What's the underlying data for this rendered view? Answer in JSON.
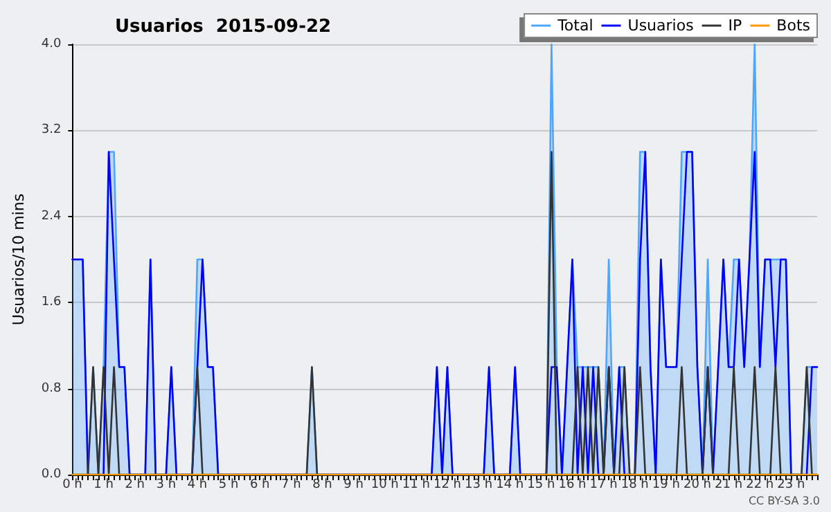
{
  "chart_data": {
    "type": "line",
    "title": "Usuarios  2015-09-22",
    "ylabel": "Usuarios/10 mins",
    "categories": [
      "0 h",
      null,
      null,
      null,
      null,
      null,
      "1 h",
      null,
      null,
      null,
      null,
      null,
      "2 h",
      null,
      null,
      null,
      null,
      null,
      "3 h",
      null,
      null,
      null,
      null,
      null,
      "4 h",
      null,
      null,
      null,
      null,
      null,
      "5 h",
      null,
      null,
      null,
      null,
      null,
      "6 h",
      null,
      null,
      null,
      null,
      null,
      "7 h",
      null,
      null,
      null,
      null,
      null,
      "8 h",
      null,
      null,
      null,
      null,
      null,
      "9 h",
      null,
      null,
      null,
      null,
      null,
      "10 h",
      null,
      null,
      null,
      null,
      null,
      "11 h",
      null,
      null,
      null,
      null,
      null,
      "12 h",
      null,
      null,
      null,
      null,
      null,
      "13 h",
      null,
      null,
      null,
      null,
      null,
      "14 h",
      null,
      null,
      null,
      null,
      null,
      "15 h",
      null,
      null,
      null,
      null,
      null,
      "16 h",
      null,
      null,
      null,
      null,
      null,
      "17 h",
      null,
      null,
      null,
      null,
      null,
      "18 h",
      null,
      null,
      null,
      null,
      null,
      "19 h",
      null,
      null,
      null,
      null,
      null,
      "20 h",
      null,
      null,
      null,
      null,
      null,
      "21 h",
      null,
      null,
      null,
      null,
      null,
      "22 h",
      null,
      null,
      null,
      null,
      null,
      "23 h",
      null,
      null,
      null,
      null,
      null
    ],
    "series": [
      {
        "name": "Total",
        "type": "area",
        "color": "#4da6ff",
        "values": [
          2,
          2,
          2,
          0,
          1,
          0,
          1,
          3,
          3,
          1,
          1,
          0,
          0,
          0,
          0,
          2,
          0,
          0,
          0,
          1,
          0,
          0,
          0,
          0,
          2,
          2,
          1,
          1,
          0,
          0,
          0,
          0,
          0,
          0,
          0,
          0,
          0,
          0,
          0,
          0,
          0,
          0,
          0,
          0,
          0,
          0,
          1,
          0,
          0,
          0,
          0,
          0,
          0,
          0,
          0,
          0,
          0,
          0,
          0,
          0,
          0,
          0,
          0,
          0,
          0,
          0,
          0,
          0,
          0,
          0,
          1,
          0,
          1,
          0,
          0,
          0,
          0,
          0,
          0,
          0,
          1,
          0,
          0,
          0,
          0,
          1,
          0,
          0,
          0,
          0,
          0,
          0,
          4,
          1,
          0,
          1,
          2,
          1,
          1,
          1,
          1,
          1,
          0,
          2,
          0,
          1,
          1,
          0,
          0,
          3,
          3,
          1,
          0,
          2,
          1,
          1,
          1,
          3,
          3,
          3,
          1,
          0,
          2,
          0,
          1,
          2,
          1,
          2,
          2,
          1,
          2,
          4,
          1,
          2,
          2,
          2,
          2,
          2,
          0,
          0,
          0,
          1,
          1,
          1
        ]
      },
      {
        "name": "Usuarios",
        "color": "#0000ff",
        "values": [
          2,
          2,
          2,
          0,
          0,
          0,
          0,
          3,
          2,
          1,
          1,
          0,
          0,
          0,
          0,
          2,
          0,
          0,
          0,
          1,
          0,
          0,
          0,
          0,
          1,
          2,
          1,
          1,
          0,
          0,
          0,
          0,
          0,
          0,
          0,
          0,
          0,
          0,
          0,
          0,
          0,
          0,
          0,
          0,
          0,
          0,
          0,
          0,
          0,
          0,
          0,
          0,
          0,
          0,
          0,
          0,
          0,
          0,
          0,
          0,
          0,
          0,
          0,
          0,
          0,
          0,
          0,
          0,
          0,
          0,
          1,
          0,
          1,
          0,
          0,
          0,
          0,
          0,
          0,
          0,
          1,
          0,
          0,
          0,
          0,
          1,
          0,
          0,
          0,
          0,
          0,
          0,
          1,
          1,
          0,
          1,
          2,
          0,
          1,
          0,
          1,
          0,
          0,
          1,
          0,
          1,
          0,
          0,
          0,
          2,
          3,
          1,
          0,
          2,
          1,
          1,
          1,
          2,
          3,
          3,
          1,
          0,
          1,
          0,
          1,
          2,
          1,
          1,
          2,
          1,
          2,
          3,
          1,
          2,
          2,
          1,
          2,
          2,
          0,
          0,
          0,
          0,
          1,
          1
        ]
      },
      {
        "name": "IP",
        "color": "#333333",
        "values": [
          0,
          0,
          0,
          0,
          1,
          0,
          1,
          0,
          1,
          0,
          0,
          0,
          0,
          0,
          0,
          0,
          0,
          0,
          0,
          0,
          0,
          0,
          0,
          0,
          1,
          0,
          0,
          0,
          0,
          0,
          0,
          0,
          0,
          0,
          0,
          0,
          0,
          0,
          0,
          0,
          0,
          0,
          0,
          0,
          0,
          0,
          1,
          0,
          0,
          0,
          0,
          0,
          0,
          0,
          0,
          0,
          0,
          0,
          0,
          0,
          0,
          0,
          0,
          0,
          0,
          0,
          0,
          0,
          0,
          0,
          0,
          0,
          0,
          0,
          0,
          0,
          0,
          0,
          0,
          0,
          0,
          0,
          0,
          0,
          0,
          0,
          0,
          0,
          0,
          0,
          0,
          0,
          3,
          0,
          0,
          0,
          0,
          1,
          0,
          1,
          0,
          1,
          0,
          1,
          0,
          0,
          1,
          0,
          0,
          1,
          0,
          0,
          0,
          0,
          0,
          0,
          0,
          1,
          0,
          0,
          0,
          0,
          1,
          0,
          0,
          0,
          0,
          1,
          0,
          0,
          0,
          1,
          0,
          0,
          0,
          1,
          0,
          0,
          0,
          0,
          0,
          1,
          0,
          0
        ]
      },
      {
        "name": "Bots",
        "color": "#ff9900",
        "values": [
          0,
          0,
          0,
          0,
          0,
          0,
          0,
          0,
          0,
          0,
          0,
          0,
          0,
          0,
          0,
          0,
          0,
          0,
          0,
          0,
          0,
          0,
          0,
          0,
          0,
          0,
          0,
          0,
          0,
          0,
          0,
          0,
          0,
          0,
          0,
          0,
          0,
          0,
          0,
          0,
          0,
          0,
          0,
          0,
          0,
          0,
          0,
          0,
          0,
          0,
          0,
          0,
          0,
          0,
          0,
          0,
          0,
          0,
          0,
          0,
          0,
          0,
          0,
          0,
          0,
          0,
          0,
          0,
          0,
          0,
          0,
          0,
          0,
          0,
          0,
          0,
          0,
          0,
          0,
          0,
          0,
          0,
          0,
          0,
          0,
          0,
          0,
          0,
          0,
          0,
          0,
          0,
          0,
          0,
          0,
          0,
          0,
          0,
          0,
          0,
          0,
          0,
          0,
          0,
          0,
          0,
          0,
          0,
          0,
          0,
          0,
          0,
          0,
          0,
          0,
          0,
          0,
          0,
          0,
          0,
          0,
          0,
          0,
          0,
          0,
          0,
          0,
          0,
          0,
          0,
          0,
          0,
          0,
          0,
          0,
          0,
          0,
          0,
          0,
          0,
          0,
          0,
          0,
          0
        ]
      }
    ],
    "ylim": [
      0,
      4
    ],
    "yticks": [
      {
        "value": 0,
        "label": "0.0"
      },
      0.8,
      1.6,
      2.4,
      3.2,
      {
        "value": 4,
        "label": "4.0"
      }
    ],
    "grid": "y",
    "legend": "top right",
    "marker": "none",
    "line_style": "solid",
    "annotations": [
      "CC BY-SA 3.0"
    ]
  }
}
